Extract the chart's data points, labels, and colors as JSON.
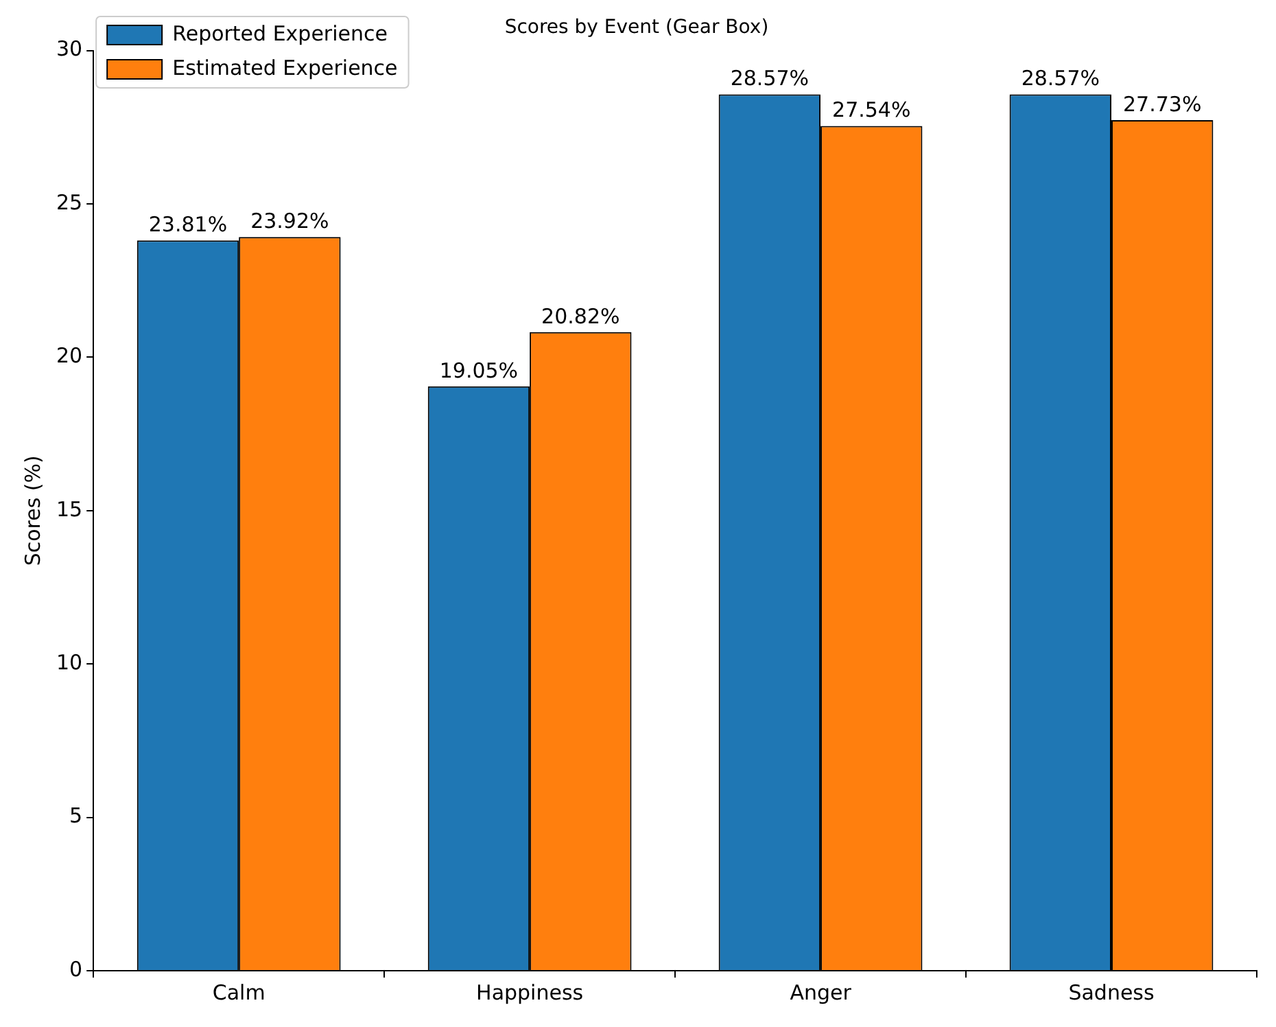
{
  "chart_data": {
    "type": "bar",
    "title": "Scores by Event (Gear Box)",
    "ylabel": "Scores (%)",
    "categories": [
      "Calm",
      "Happiness",
      "Anger",
      "Sadness"
    ],
    "series": [
      {
        "name": "Reported Experience",
        "color": "#1f77b4",
        "values": [
          23.81,
          19.05,
          28.57,
          28.57
        ],
        "value_labels": [
          "23.81%",
          "19.05%",
          "28.57%",
          "28.57%"
        ]
      },
      {
        "name": "Estimated Experience",
        "color": "#ff7f0e",
        "values": [
          23.92,
          20.82,
          27.54,
          27.73
        ],
        "value_labels": [
          "23.92%",
          "20.82%",
          "27.54%",
          "27.73%"
        ]
      }
    ],
    "ylim": [
      0,
      30
    ],
    "yticks": [
      0,
      5,
      10,
      15,
      20,
      25,
      30
    ],
    "grid": false,
    "legend": "top left"
  }
}
